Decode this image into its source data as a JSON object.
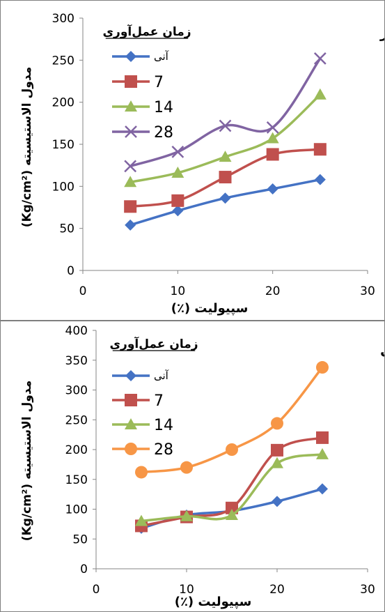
{
  "chart_data": [
    {
      "type": "line",
      "title": "رس ماسه‌دار",
      "xlabel": "سپیولیت (٪)",
      "ylabel": "مدول الاستیسیته (Kg/cm²)",
      "legend_title": "زمان عمل‌آوری",
      "legend_position": "top-left",
      "xlim": [
        0,
        30
      ],
      "ylim": [
        0,
        300
      ],
      "x_ticks": [
        "0",
        "10",
        "20",
        "30"
      ],
      "y_ticks": [
        "0",
        "50",
        "100",
        "150",
        "200",
        "250",
        "300"
      ],
      "grid": false,
      "x": [
        5,
        10,
        15,
        20,
        25
      ],
      "series": [
        {
          "name": "آنی",
          "values": [
            54,
            71,
            86,
            97,
            108
          ],
          "color": "#4472c4",
          "marker": "diamond"
        },
        {
          "name": "7",
          "values": [
            76,
            83,
            111,
            138,
            144
          ],
          "color": "#c0504d",
          "marker": "square"
        },
        {
          "name": "14",
          "values": [
            105,
            116,
            135,
            157,
            209
          ],
          "color": "#9bbb59",
          "marker": "triangle"
        },
        {
          "name": "28",
          "values": [
            124,
            141,
            172,
            170,
            252
          ],
          "color": "#8064a2",
          "marker": "x"
        }
      ]
    },
    {
      "type": "line",
      "title": "ماسه رسی",
      "xlabel": "سپیولیت (٪)",
      "ylabel": "مدول الاستیسیته (Kg/cm²)",
      "legend_title": "زمان عمل‌آوری",
      "legend_position": "top-left",
      "xlim": [
        0,
        30
      ],
      "ylim": [
        0,
        400
      ],
      "x_ticks": [
        "0",
        "10",
        "20",
        "30"
      ],
      "y_ticks": [
        "0",
        "50",
        "100",
        "150",
        "200",
        "250",
        "300",
        "350",
        "400"
      ],
      "grid": false,
      "x": [
        5,
        10,
        15,
        20,
        25
      ],
      "series": [
        {
          "name": "آنی",
          "values": [
            68,
            90,
            97,
            113,
            134
          ],
          "color": "#4472c4",
          "marker": "diamond"
        },
        {
          "name": "7",
          "values": [
            72,
            87,
            102,
            199,
            220
          ],
          "color": "#c0504d",
          "marker": "square"
        },
        {
          "name": "14",
          "values": [
            80,
            88,
            90,
            177,
            192
          ],
          "color": "#9bbb59",
          "marker": "triangle"
        },
        {
          "name": "28",
          "values": [
            162,
            170,
            200,
            244,
            338
          ],
          "color": "#f79646",
          "marker": "circle"
        }
      ]
    }
  ]
}
